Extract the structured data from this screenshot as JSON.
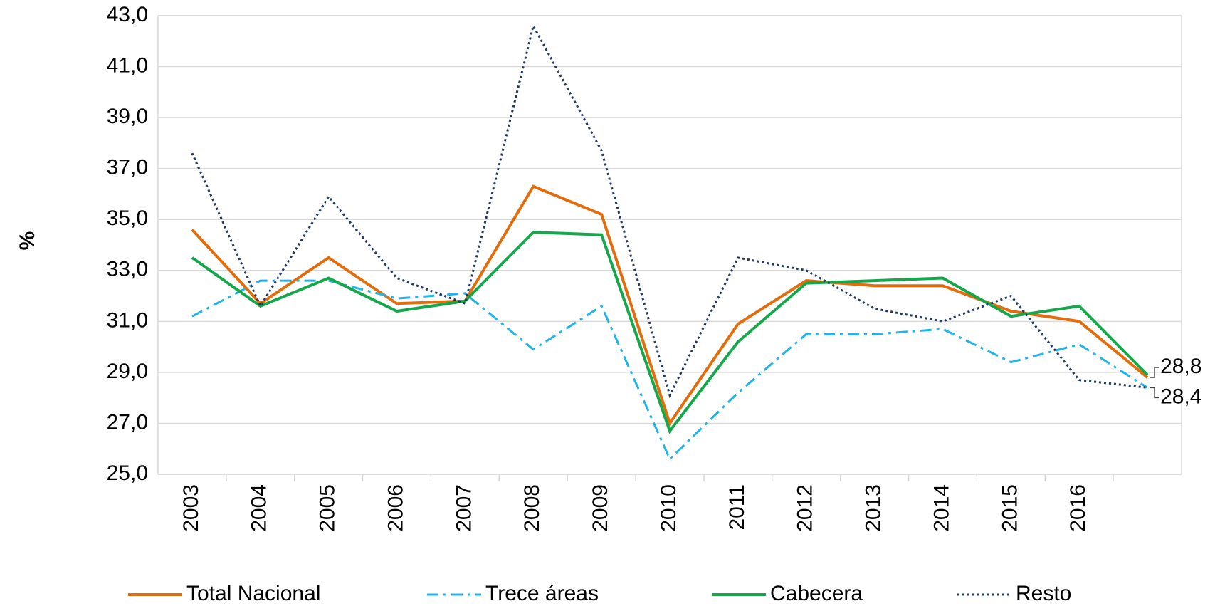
{
  "chart_data": {
    "type": "line",
    "y_label": "%",
    "categories": [
      "2003",
      "2004",
      "2005",
      "2006",
      "2007",
      "2008",
      "2009",
      "2010",
      "2011",
      "2012",
      "2013",
      "2014",
      "2015",
      "2016",
      null
    ],
    "series": [
      {
        "name": "Total Nacional",
        "color": "#e46c0a",
        "style": "solid",
        "values": [
          34.6,
          31.7,
          33.5,
          31.7,
          31.8,
          36.3,
          35.2,
          27.0,
          30.9,
          32.6,
          32.4,
          32.4,
          31.4,
          31.0,
          28.8
        ],
        "value_labels": [
          null,
          null,
          null,
          null,
          null,
          null,
          null,
          null,
          null,
          null,
          null,
          null,
          null,
          null,
          "28,8"
        ]
      },
      {
        "name": "Trece áreas",
        "color": "#1fb5ea",
        "style": "dashdot",
        "values": [
          31.2,
          32.6,
          32.6,
          31.9,
          32.1,
          29.9,
          31.6,
          25.6,
          28.2,
          30.5,
          30.5,
          30.7,
          29.4,
          30.1,
          28.4
        ],
        "value_labels": [
          null,
          null,
          null,
          null,
          null,
          null,
          null,
          null,
          null,
          null,
          null,
          null,
          null,
          null,
          "28,4"
        ]
      },
      {
        "name": "Cabecera",
        "color": "#14a84b",
        "style": "solid",
        "values": [
          33.5,
          31.6,
          32.7,
          31.4,
          31.8,
          34.5,
          34.4,
          26.7,
          30.2,
          32.5,
          32.6,
          32.7,
          31.2,
          31.6,
          28.9
        ]
      },
      {
        "name": "Resto",
        "color": "#1f3864",
        "style": "dotted",
        "values": [
          37.6,
          31.6,
          35.9,
          32.7,
          31.7,
          42.6,
          37.7,
          28.1,
          33.5,
          33.0,
          31.5,
          31.0,
          32.0,
          28.7,
          28.4
        ]
      }
    ],
    "ylim": [
      25,
      43
    ],
    "yticks": [
      {
        "value": 25,
        "label": "25,0"
      },
      {
        "value": 27,
        "label": "27,0"
      },
      {
        "value": 29,
        "label": "29,0"
      },
      {
        "value": 31,
        "label": "31,0"
      },
      {
        "value": 33,
        "label": "33,0"
      },
      {
        "value": 35,
        "label": "35,0"
      },
      {
        "value": 37,
        "label": "37,0"
      },
      {
        "value": 39,
        "label": "39,0"
      },
      {
        "value": 41,
        "label": "41,0"
      },
      {
        "value": 43,
        "label": "43,0"
      }
    ],
    "grid": true,
    "legend": "bottom"
  }
}
